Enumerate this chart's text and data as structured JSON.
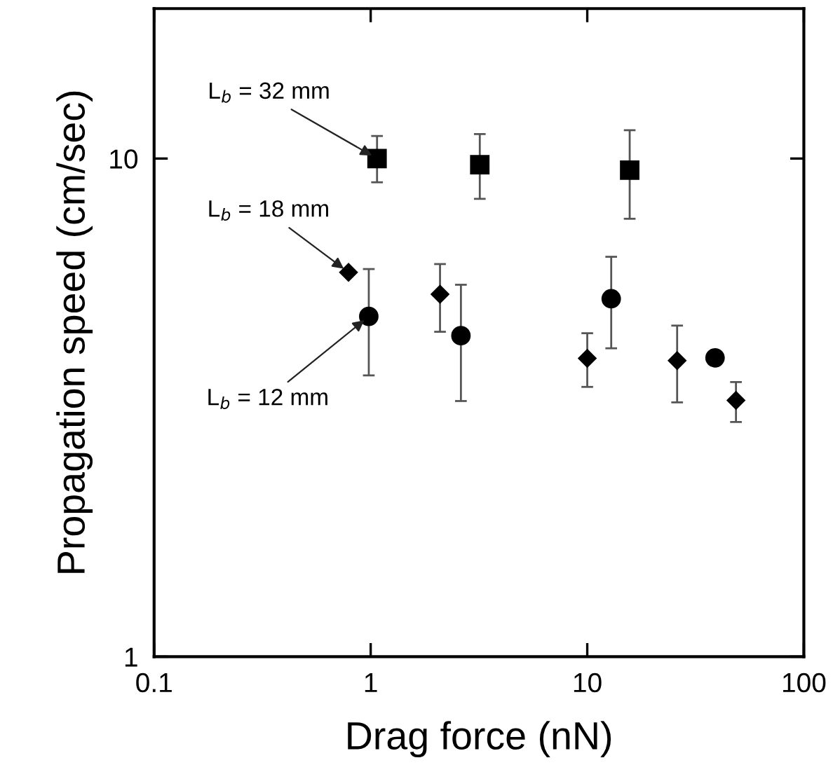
{
  "chart_data": {
    "type": "scatter",
    "xlabel": "Drag force (nN)",
    "ylabel": "Propagation speed (cm/sec)",
    "log": "xy",
    "xlim": [
      0.1,
      100
    ],
    "xticks": [
      0.1,
      1,
      10,
      100
    ],
    "ylim": [
      1,
      20
    ],
    "yticks": [
      1,
      10
    ],
    "grid": false,
    "legend": false,
    "series": [
      {
        "color": "#000000",
        "marker": "square",
        "x": [
          1.07,
          3.19,
          15.7
        ],
        "values": [
          10.0,
          9.72,
          9.48
        ],
        "errors": [
          [
            8.96,
            11.1
          ],
          [
            8.3,
            11.2
          ],
          [
            7.57,
            11.4
          ]
        ]
      },
      {
        "color": "#000000",
        "marker": "diamond",
        "x": [
          0.79,
          2.09,
          10,
          26.0,
          48.6
        ],
        "values": [
          5.91,
          5.34,
          3.97,
          3.93,
          3.27
        ],
        "errors": [
          null,
          [
            4.49,
            6.14
          ],
          [
            3.48,
            4.46
          ],
          [
            3.24,
            4.62
          ],
          [
            2.96,
            3.56
          ]
        ]
      },
      {
        "color": "#000000",
        "marker": "circle",
        "x": [
          0.98,
          2.61,
          12.9,
          38.9
        ],
        "values": [
          4.82,
          4.41,
          5.23,
          3.98
        ],
        "errors": [
          [
            3.67,
            6.0
          ],
          [
            3.26,
            5.58
          ],
          [
            4.16,
            6.35
          ],
          null
        ]
      }
    ],
    "annotations": [
      {
        "text": "L$_{b}$ = 32 mm",
        "x": 1.07,
        "y": 10.0
      },
      {
        "text": "L$_{b}$ = 18 mm",
        "x": 0.79,
        "y": 5.91
      },
      {
        "text": "L$_{b}$ = 12 mm",
        "x": 0.98,
        "y": 4.82
      }
    ]
  }
}
